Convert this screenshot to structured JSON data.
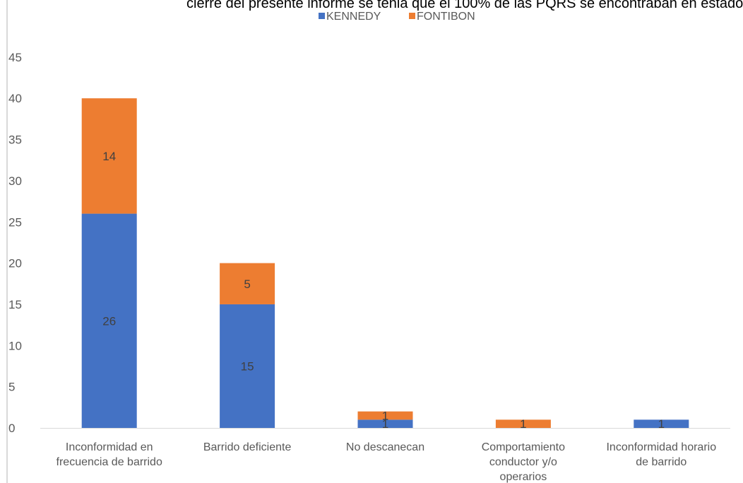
{
  "document": {
    "cut_text_line": "cierre del presente informe se tenia que el 100% de las PQRS se encontraban en estado"
  },
  "chart_data": {
    "type": "bar",
    "stacked": true,
    "title": "",
    "xlabel": "",
    "ylabel": "",
    "ylim": [
      0,
      45
    ],
    "yticks": [
      0,
      5,
      10,
      15,
      20,
      25,
      30,
      35,
      40,
      45
    ],
    "grid": false,
    "legend_position": "top",
    "categories": [
      "Inconformidad en frecuencia de barrido",
      "Barrido deficiente",
      "No descanecan",
      "Comportamiento conductor y/o operarios",
      "Inconformidad horario de barrido"
    ],
    "category_label_lines": [
      [
        "Inconformidad en",
        "frecuencia de barrido"
      ],
      [
        "Barrido deficiente"
      ],
      [
        "No descanecan"
      ],
      [
        "Comportamiento",
        "conductor y/o",
        "operarios"
      ],
      [
        "Inconformidad horario",
        "de barrido"
      ]
    ],
    "series": [
      {
        "name": "KENNEDY",
        "color": "#4472c4",
        "values": [
          26,
          15,
          1,
          0,
          1
        ],
        "data_labels": [
          "26",
          "15",
          "1",
          "",
          "1"
        ]
      },
      {
        "name": "FONTIBON",
        "color": "#ed7d31",
        "values": [
          14,
          5,
          1,
          1,
          0
        ],
        "data_labels": [
          "14",
          "5",
          "1",
          "1",
          ""
        ]
      }
    ],
    "colors": {
      "axis": "#d9d9d9",
      "tick_text": "#595959",
      "label_text": "#404040"
    }
  }
}
